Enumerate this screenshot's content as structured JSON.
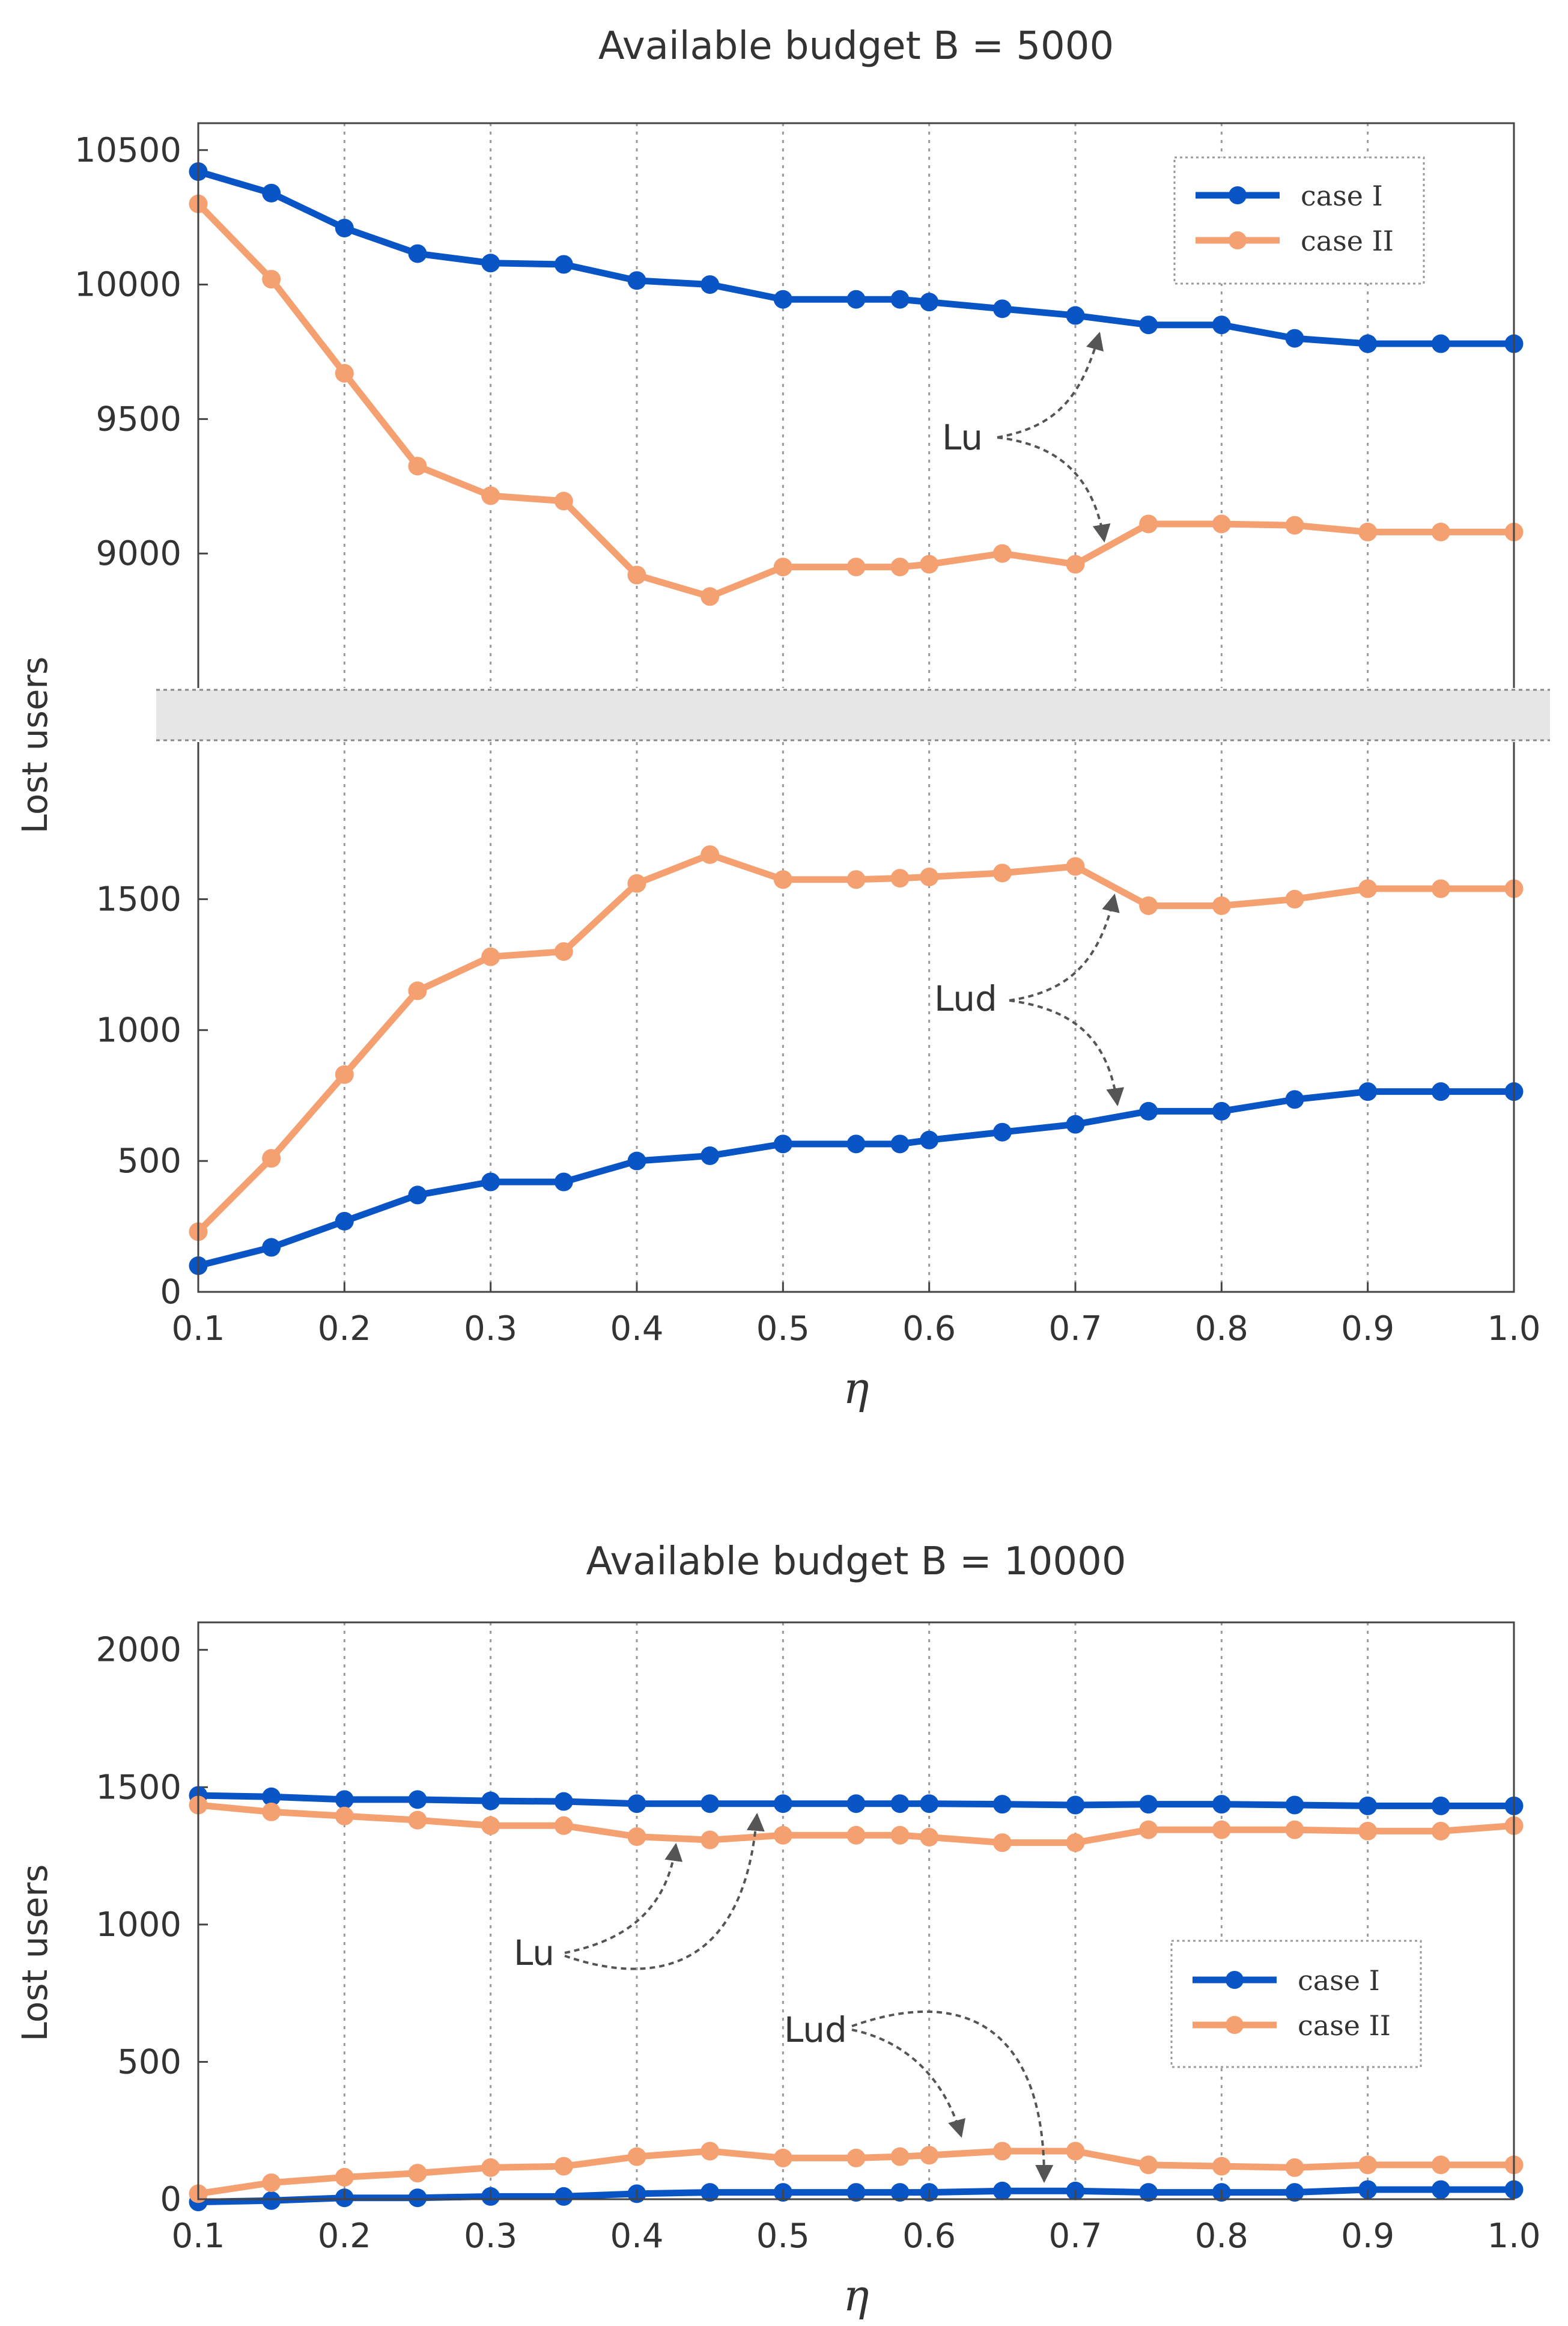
{
  "colors": {
    "case_I": "#0a55c6",
    "case_II": "#f5a071",
    "break_band": "#e6e6e6"
  },
  "chart_data": [
    {
      "type": "line",
      "title": "Available budget B = 5000",
      "ylabel": "Lost users",
      "xlabel": "η",
      "broken_y_axis": true,
      "x": [
        0.1,
        0.15,
        0.2,
        0.25,
        0.3,
        0.35,
        0.4,
        0.45,
        0.5,
        0.55,
        0.58,
        0.6,
        0.65,
        0.7,
        0.75,
        0.8,
        0.85,
        0.9,
        0.95,
        1.0
      ],
      "x_ticks": [
        "0.1",
        "0.2",
        "0.3",
        "0.4",
        "0.5",
        "0.6",
        "0.7",
        "0.8",
        "0.9",
        "1.0"
      ],
      "upper_panel": {
        "ylim": [
          8500,
          10600
        ],
        "y_ticks": [
          "9000",
          "9500",
          "10000",
          "10500"
        ],
        "series": [
          {
            "name": "case I",
            "color_key": "case_I",
            "values": [
              10420,
              10340,
              10210,
              10115,
              10080,
              10075,
              10015,
              10000,
              9945,
              9945,
              9945,
              9935,
              9910,
              9885,
              9850,
              9850,
              9800,
              9780,
              9780,
              9780
            ]
          },
          {
            "name": "case II",
            "color_key": "case_II",
            "values": [
              10300,
              10020,
              9670,
              9325,
              9215,
              9195,
              8920,
              8840,
              8950,
              8950,
              8950,
              8960,
              9000,
              8960,
              9110,
              9110,
              9105,
              9080,
              9080,
              9080
            ]
          }
        ],
        "annotation": "Lu"
      },
      "lower_panel": {
        "ylim": [
          0,
          2100
        ],
        "y_ticks": [
          "0",
          "500",
          "1000",
          "1500"
        ],
        "series": [
          {
            "name": "case I",
            "color_key": "case_I",
            "values": [
              100,
              170,
              270,
              370,
              420,
              420,
              500,
              520,
              565,
              565,
              565,
              580,
              610,
              640,
              690,
              690,
              735,
              765,
              765,
              765
            ]
          },
          {
            "name": "case II",
            "color_key": "case_II",
            "values": [
              230,
              510,
              830,
              1150,
              1280,
              1300,
              1560,
              1670,
              1575,
              1575,
              1580,
              1585,
              1600,
              1625,
              1475,
              1475,
              1500,
              1540,
              1540,
              1540
            ]
          }
        ],
        "annotation": "Lud"
      },
      "legend": {
        "placement": "top-right",
        "entries": [
          "case I",
          "case II"
        ]
      }
    },
    {
      "type": "line",
      "title": "Available budget B = 10000",
      "ylabel": "Lost users",
      "xlabel": "η",
      "ylim": [
        0,
        2100
      ],
      "y_ticks": [
        "0",
        "500",
        "1000",
        "1500",
        "2000"
      ],
      "x_ticks": [
        "0.1",
        "0.2",
        "0.3",
        "0.4",
        "0.5",
        "0.6",
        "0.7",
        "0.8",
        "0.9",
        "1.0"
      ],
      "x": [
        0.1,
        0.15,
        0.2,
        0.25,
        0.3,
        0.35,
        0.4,
        0.45,
        0.5,
        0.55,
        0.58,
        0.6,
        0.65,
        0.7,
        0.75,
        0.8,
        0.85,
        0.9,
        0.95,
        1.0
      ],
      "series": [
        {
          "name": "case I",
          "color_key": "case_I",
          "values": [
            1470,
            1465,
            1455,
            1455,
            1450,
            1448,
            1440,
            1440,
            1440,
            1440,
            1440,
            1440,
            1438,
            1435,
            1438,
            1438,
            1435,
            1432,
            1432,
            1432
          ]
        },
        {
          "name": "case II",
          "color_key": "case_II",
          "values": [
            1435,
            1410,
            1395,
            1380,
            1360,
            1360,
            1320,
            1308,
            1325,
            1325,
            1325,
            1318,
            1298,
            1298,
            1345,
            1345,
            1345,
            1340,
            1340,
            1360
          ]
        },
        {
          "name": "case I",
          "color_key": "case_I",
          "values": [
            -10,
            -5,
            5,
            5,
            10,
            10,
            20,
            25,
            25,
            25,
            25,
            25,
            30,
            30,
            25,
            25,
            25,
            35,
            35,
            35
          ]
        },
        {
          "name": "case II",
          "color_key": "case_II",
          "values": [
            20,
            60,
            80,
            95,
            115,
            120,
            155,
            175,
            150,
            150,
            155,
            160,
            175,
            175,
            125,
            120,
            115,
            125,
            125,
            125
          ]
        }
      ],
      "annotations": [
        "Lu",
        "Lud"
      ],
      "legend": {
        "placement": "lower-right",
        "entries": [
          "case I",
          "case II"
        ]
      }
    }
  ]
}
